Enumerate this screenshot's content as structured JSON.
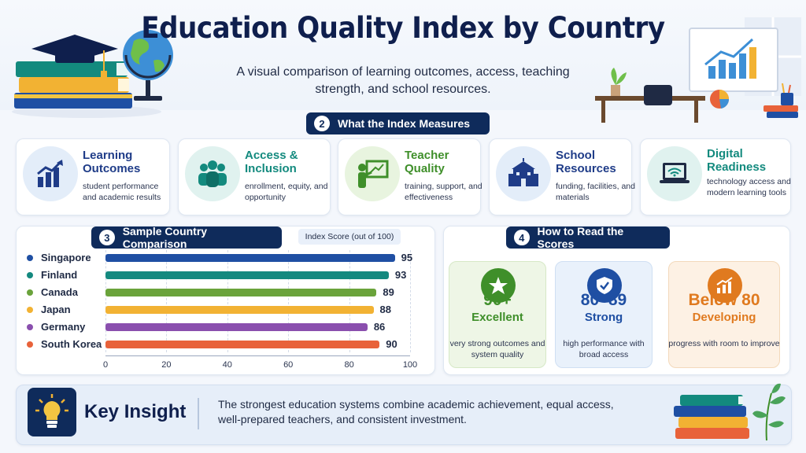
{
  "header": {
    "title": "Education Quality Index by Country",
    "subtitle": "A visual comparison of learning outcomes, access, teaching strength, and school resources."
  },
  "measures": {
    "badge": "2",
    "heading": "What the Index Measures",
    "items": [
      {
        "title": "Learning Outcomes",
        "desc": "student performance and academic results",
        "icon": "bar-chart-up-icon",
        "color": "#1f3c88"
      },
      {
        "title": "Access & Inclusion",
        "desc": "enrollment, equity, and opportunity",
        "icon": "people-group-icon",
        "color": "#138a7e"
      },
      {
        "title": "Teacher Quality",
        "desc": "training, support, and effectiveness",
        "icon": "teacher-board-icon",
        "color": "#3f8f2a"
      },
      {
        "title": "School Resources",
        "desc": "funding, facilities, and materials",
        "icon": "school-building-icon",
        "color": "#1f3c88"
      },
      {
        "title": "Digital Readiness",
        "desc": "technology access and modern learning tools",
        "icon": "laptop-wifi-icon",
        "color": "#138a7e"
      }
    ]
  },
  "comparison": {
    "badge": "3",
    "heading": "Sample Country Comparison",
    "legend": "Index Score (out of 100)"
  },
  "chart_data": {
    "type": "bar",
    "orientation": "horizontal",
    "categories": [
      "Singapore",
      "Finland",
      "Canada",
      "Japan",
      "Germany",
      "South Korea"
    ],
    "values": [
      95,
      93,
      89,
      88,
      86,
      90
    ],
    "colors": [
      "#1f4fa3",
      "#14897f",
      "#6aa33b",
      "#f2b233",
      "#8a4fae",
      "#e8623a"
    ],
    "xlim": [
      0,
      100
    ],
    "xticks": [
      "0",
      "20",
      "40",
      "60",
      "80",
      "100"
    ],
    "grid": true
  },
  "scores": {
    "badge": "4",
    "heading": "How to Read the Scores",
    "items": [
      {
        "value": "90+",
        "label": "Excellent",
        "desc": "very strong outcomes and system quality",
        "icon": "star-icon",
        "color": "#3f8f2a",
        "bg": "#eef6e6"
      },
      {
        "value": "80–89",
        "label": "Strong",
        "desc": "high performance with broad access",
        "icon": "shield-check-icon",
        "color": "#1f4fa3",
        "bg": "#e9f1fb"
      },
      {
        "value": "Below 80",
        "label": "Developing",
        "desc": "progress with room to improve",
        "icon": "growth-chart-icon",
        "color": "#e07a1f",
        "bg": "#fdf1e4"
      }
    ]
  },
  "insight": {
    "heading": "Key Insight",
    "text": "The strongest education systems combine academic achievement, equal access, well-prepared teachers, and consistent investment.",
    "icon": "lightbulb-icon"
  }
}
